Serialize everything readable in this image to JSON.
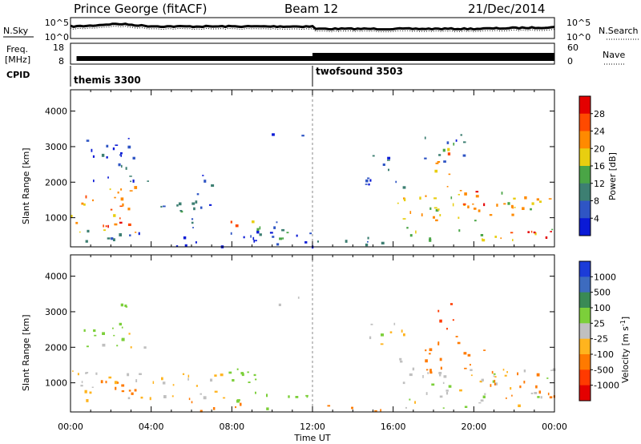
{
  "header": {
    "station": "Prince George (fitACF)",
    "beam": "Beam 12",
    "date": "21/Dec/2014"
  },
  "nsky_panel": {
    "left_label": "N.Sky",
    "right_label": "N.Search",
    "left_ticks": [
      "10^5",
      "10^0"
    ],
    "right_ticks": [
      "10^5",
      "10^0"
    ]
  },
  "freq_panel": {
    "left_label_line1": "Freq.",
    "left_label_line2": "[MHz]",
    "right_label": "Nave",
    "left_ticks": [
      "18",
      "8"
    ],
    "right_ticks": [
      "60",
      "0"
    ]
  },
  "cpid_panel": {
    "label": "CPID",
    "modes": [
      {
        "name": "themis 3300",
        "start_hour": 0
      },
      {
        "name": "twofsound 3503",
        "start_hour": 12
      }
    ]
  },
  "chart_data": [
    {
      "type": "heatmap",
      "quantity": "Power",
      "xlabel": "Time UT",
      "ylabel": "Slant Range [km]",
      "xlim_hours": [
        0,
        24
      ],
      "ylim_km": [
        180,
        4600
      ],
      "y_ticks": [
        "1000",
        "2000",
        "3000",
        "4000"
      ],
      "colorbar_label": "Power [dB]",
      "colorbar_ticks": [
        "4",
        "8",
        "12",
        "16",
        "20",
        "24",
        "28"
      ],
      "colorbar_colors": [
        "#0a1ad6",
        "#2f55c4",
        "#3d7f72",
        "#4aa546",
        "#e8ce10",
        "#ff8a00",
        "#ff4a00",
        "#e40000"
      ],
      "blobs": [
        {
          "t0": 0.0,
          "t1": 3.2,
          "r0": 500,
          "r1": 1900,
          "v": 24
        },
        {
          "t0": 0.5,
          "t1": 3.5,
          "r0": 200,
          "r1": 700,
          "v": 8
        },
        {
          "t0": 1.6,
          "t1": 3.0,
          "r0": 700,
          "r1": 1500,
          "v": 29
        },
        {
          "t0": 0.5,
          "t1": 3.2,
          "r0": 2000,
          "r1": 3300,
          "v": 6
        },
        {
          "t0": 2.5,
          "t1": 3.8,
          "r0": 1900,
          "r1": 2600,
          "v": 9
        },
        {
          "t0": 3.8,
          "t1": 6.5,
          "r0": 700,
          "r1": 1600,
          "v": 10
        },
        {
          "t0": 4.0,
          "t1": 12.0,
          "r0": 200,
          "r1": 650,
          "v": 5
        },
        {
          "t0": 6.2,
          "t1": 7.0,
          "r0": 1200,
          "r1": 2800,
          "v": 8
        },
        {
          "t0": 7.8,
          "t1": 8.3,
          "r0": 800,
          "r1": 1600,
          "v": 26
        },
        {
          "t0": 8.6,
          "t1": 9.4,
          "r0": 700,
          "r1": 1500,
          "v": 20
        },
        {
          "t0": 9.2,
          "t1": 11.0,
          "r0": 300,
          "r1": 1200,
          "v": 13
        },
        {
          "t0": 9.9,
          "t1": 10.5,
          "r0": 3000,
          "r1": 3450,
          "v": 6
        },
        {
          "t0": 11.1,
          "t1": 11.5,
          "r0": 3100,
          "r1": 3450,
          "v": 7
        },
        {
          "t0": 12.0,
          "t1": 16.0,
          "r0": 200,
          "r1": 500,
          "v": 14
        },
        {
          "t0": 14.6,
          "t1": 16.6,
          "r0": 1600,
          "r1": 2800,
          "v": 7
        },
        {
          "t0": 16.2,
          "t1": 24.0,
          "r0": 400,
          "r1": 1800,
          "v": 21
        },
        {
          "t0": 18.0,
          "t1": 19.0,
          "r0": 1800,
          "r1": 3200,
          "v": 23
        },
        {
          "t0": 19.0,
          "t1": 21.0,
          "r0": 1000,
          "r1": 1800,
          "v": 26
        },
        {
          "t0": 21.5,
          "t1": 24.0,
          "r0": 400,
          "r1": 900,
          "v": 29
        },
        {
          "t0": 17.0,
          "t1": 19.5,
          "r0": 2600,
          "r1": 3500,
          "v": 10
        }
      ]
    },
    {
      "type": "heatmap",
      "quantity": "Velocity",
      "xlabel": "Time UT",
      "ylabel": "Slant Range [km]",
      "xlim_hours": [
        0,
        24
      ],
      "ylim_km": [
        180,
        4600
      ],
      "y_ticks": [
        "1000",
        "2000",
        "3000",
        "4000"
      ],
      "x_ticks": [
        "00:00",
        "04:00",
        "08:00",
        "12:00",
        "16:00",
        "20:00",
        "00:00"
      ],
      "colorbar_label": "Velocity [m s",
      "colorbar_label_sup": "-1",
      "colorbar_label_end": "]",
      "colorbar_ticks": [
        "1000",
        "500",
        "100",
        "25",
        "-25",
        "-100",
        "-500",
        "-1000"
      ],
      "colorbar_colors": [
        "#1c3cd8",
        "#3d6bbf",
        "#3a8a55",
        "#7ccf3a",
        "#c0c0c0",
        "#ffb41e",
        "#ff7a00",
        "#ff3a00",
        "#e40000"
      ],
      "blobs": [
        {
          "t0": 0.0,
          "t1": 3.5,
          "r0": 400,
          "r1": 1500,
          "v": -25
        },
        {
          "t0": 1.5,
          "t1": 3.2,
          "r0": 700,
          "r1": 1800,
          "v": -400
        },
        {
          "t0": 0.5,
          "t1": 3.0,
          "r0": 2000,
          "r1": 3300,
          "v": 60
        },
        {
          "t0": 2.8,
          "t1": 3.8,
          "r0": 1900,
          "r1": 2500,
          "v": -10
        },
        {
          "t0": 3.8,
          "t1": 7.5,
          "r0": 500,
          "r1": 1400,
          "v": -30
        },
        {
          "t0": 5.0,
          "t1": 9.0,
          "r0": 200,
          "r1": 600,
          "v": -120
        },
        {
          "t0": 7.5,
          "t1": 9.5,
          "r0": 300,
          "r1": 1500,
          "v": 60
        },
        {
          "t0": 9.5,
          "t1": 12.0,
          "r0": 200,
          "r1": 700,
          "v": 50
        },
        {
          "t0": 9.9,
          "t1": 10.5,
          "r0": 3000,
          "r1": 3450,
          "v": 10
        },
        {
          "t0": 11.1,
          "t1": 11.5,
          "r0": 3100,
          "r1": 3450,
          "v": 10
        },
        {
          "t0": 12.0,
          "t1": 15.5,
          "r0": 200,
          "r1": 450,
          "v": -150
        },
        {
          "t0": 14.6,
          "t1": 16.5,
          "r0": 1600,
          "r1": 2700,
          "v": -10
        },
        {
          "t0": 16.2,
          "t1": 24.0,
          "r0": 300,
          "r1": 1500,
          "v": 0
        },
        {
          "t0": 17.5,
          "t1": 21.0,
          "r0": 1300,
          "r1": 2400,
          "v": -450
        },
        {
          "t0": 18.0,
          "t1": 19.0,
          "r0": 2400,
          "r1": 3300,
          "v": -600
        },
        {
          "t0": 20.5,
          "t1": 24.0,
          "r0": 500,
          "r1": 1300,
          "v": -150
        }
      ]
    }
  ]
}
